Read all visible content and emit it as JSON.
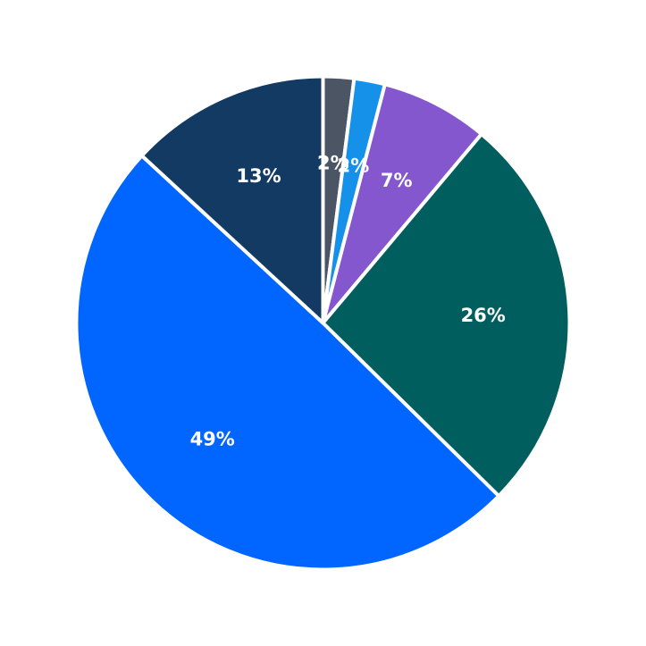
{
  "chart_data": {
    "type": "pie",
    "title": "",
    "start_angle_deg": 90,
    "direction": "clockwise",
    "slices": [
      {
        "value": 2,
        "label": "2%",
        "color": "#4b5563"
      },
      {
        "value": 2,
        "label": "2%",
        "color": "#1591ea"
      },
      {
        "value": 7,
        "label": "7%",
        "color": "#8457ce"
      },
      {
        "value": 26,
        "label": "26%",
        "color": "#005f5e"
      },
      {
        "value": 49,
        "label": "49%",
        "color": "#0066ff"
      },
      {
        "value": 13,
        "label": "13%",
        "color": "#133a62"
      }
    ]
  }
}
